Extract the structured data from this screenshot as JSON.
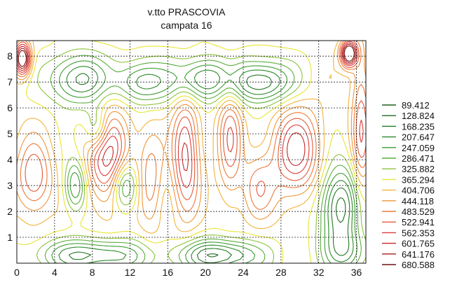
{
  "chart_data": {
    "type": "contour",
    "title": "v.tto PRASCOVIA",
    "subtitle": "campata 16",
    "xlabel": "",
    "ylabel": "",
    "xlim": [
      0,
      37
    ],
    "ylim": [
      0,
      8.6
    ],
    "x_ticks": [
      "0",
      "4",
      "8",
      "12",
      "16",
      "20",
      "24",
      "28",
      "32",
      "36"
    ],
    "y_ticks": [
      "1",
      "2",
      "3",
      "4",
      "5",
      "6",
      "7",
      "8"
    ],
    "grid": true,
    "legend_position": "right",
    "levels": [
      {
        "value": "89.412",
        "color": "#1f5e1f"
      },
      {
        "value": "128.824",
        "color": "#206a20"
      },
      {
        "value": "168.235",
        "color": "#227a22"
      },
      {
        "value": "207.647",
        "color": "#2a8a2a"
      },
      {
        "value": "247.059",
        "color": "#3c9c32"
      },
      {
        "value": "286.471",
        "color": "#5aae3c"
      },
      {
        "value": "325.882",
        "color": "#8cc43c"
      },
      {
        "value": "365.294",
        "color": "#e6e632"
      },
      {
        "value": "404.706",
        "color": "#f2b43c"
      },
      {
        "value": "444.118",
        "color": "#f0963a"
      },
      {
        "value": "483.529",
        "color": "#ec7a3a"
      },
      {
        "value": "522.941",
        "color": "#e65a3a"
      },
      {
        "value": "562.353",
        "color": "#dc3c3c"
      },
      {
        "value": "601.765",
        "color": "#c82828"
      },
      {
        "value": "641.176",
        "color": "#a81e1e"
      },
      {
        "value": "680.588",
        "color": "#6e1010"
      }
    ],
    "features": [
      {
        "x": 0.6,
        "y": 7.9,
        "sx": 0.6,
        "sy": 0.45,
        "amp": 400
      },
      {
        "x": 35.2,
        "y": 8.1,
        "sx": 0.6,
        "sy": 0.35,
        "amp": 420
      },
      {
        "x": 6.5,
        "y": 7.1,
        "sx": 2.2,
        "sy": 0.7,
        "amp": -230
      },
      {
        "x": 13.2,
        "y": 7.0,
        "sx": 2.0,
        "sy": 0.6,
        "amp": -200
      },
      {
        "x": 19.5,
        "y": 7.1,
        "sx": 2.2,
        "sy": 0.6,
        "amp": -230
      },
      {
        "x": 26.0,
        "y": 7.0,
        "sx": 2.3,
        "sy": 0.6,
        "amp": -260
      },
      {
        "x": 8.5,
        "y": 5.2,
        "sx": 0.9,
        "sy": 0.6,
        "amp": -180
      },
      {
        "x": 9.8,
        "y": 4.1,
        "sx": 1.6,
        "sy": 1.3,
        "amp": 260
      },
      {
        "x": 17.9,
        "y": 4.2,
        "sx": 1.0,
        "sy": 1.6,
        "amp": 240
      },
      {
        "x": 22.6,
        "y": 4.8,
        "sx": 0.9,
        "sy": 1.6,
        "amp": 170
      },
      {
        "x": 29.6,
        "y": 4.3,
        "sx": 1.8,
        "sy": 1.2,
        "amp": 240
      },
      {
        "x": 1.8,
        "y": 3.3,
        "sx": 1.3,
        "sy": 1.0,
        "amp": 190
      },
      {
        "x": 6.2,
        "y": 3.0,
        "sx": 0.8,
        "sy": 0.7,
        "amp": -200
      },
      {
        "x": 11.4,
        "y": 3.0,
        "sx": 1.0,
        "sy": 0.7,
        "amp": -230
      },
      {
        "x": 14.2,
        "y": 3.2,
        "sx": 0.9,
        "sy": 1.3,
        "amp": 130
      },
      {
        "x": 25.6,
        "y": 2.9,
        "sx": 1.2,
        "sy": 0.9,
        "amp": 120
      },
      {
        "x": 34.2,
        "y": 2.2,
        "sx": 1.5,
        "sy": 1.1,
        "amp": -280
      },
      {
        "x": 8.0,
        "y": 0.3,
        "sx": 4.0,
        "sy": 0.45,
        "amp": -230
      },
      {
        "x": 21.5,
        "y": 0.3,
        "sx": 3.0,
        "sy": 0.45,
        "amp": -260
      },
      {
        "x": 35.0,
        "y": 0.4,
        "sx": 1.8,
        "sy": 0.6,
        "amp": -150
      },
      {
        "x": 36.5,
        "y": 5.2,
        "sx": 0.7,
        "sy": 2.2,
        "amp": 170
      }
    ]
  }
}
